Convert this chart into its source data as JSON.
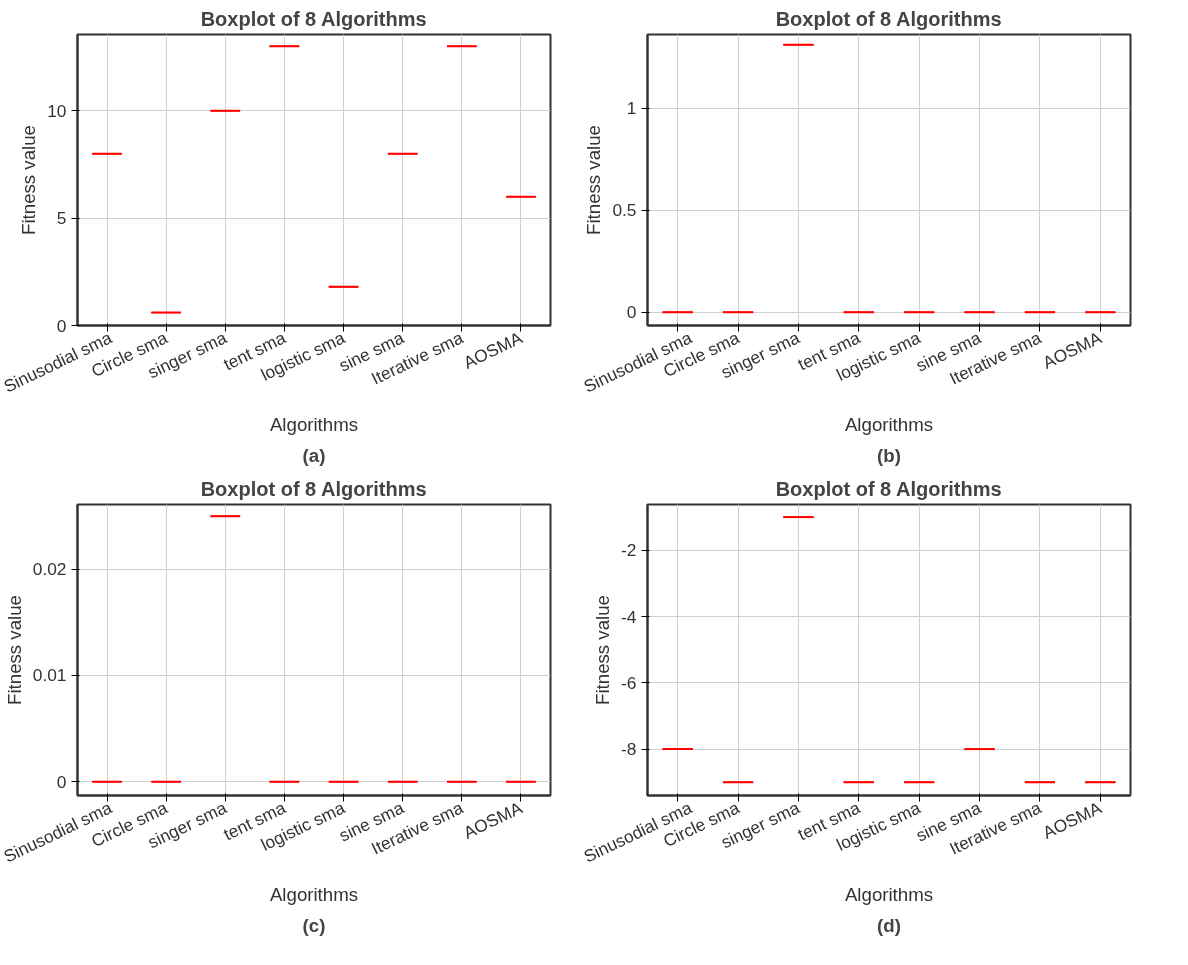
{
  "chart_data": [
    {
      "type": "box",
      "title": "Boxplot of 8 Algorithms",
      "xlabel": "Algorithms",
      "ylabel": "Fitness value",
      "annotations": [
        "(a)"
      ],
      "categories": [
        "Sinusodial sma",
        "Circle sma",
        "singer sma",
        "tent sma",
        "logistic sma",
        "sine sma",
        "Iterative sma",
        "AOSMA"
      ],
      "ylim": [
        0,
        13.55
      ],
      "yticks": [
        0,
        5,
        10
      ],
      "grid": true,
      "series": [
        {
          "color": "#ff0000",
          "boxes": [
            {
              "low": 8,
              "q1": 8,
              "median": 8,
              "q3": 8,
              "high": 8
            },
            {
              "low": 0.6,
              "q1": 0.6,
              "median": 0.6,
              "q3": 0.6,
              "high": 0.6
            },
            {
              "low": 10,
              "q1": 10,
              "median": 10,
              "q3": 10,
              "high": 10
            },
            {
              "low": 13,
              "q1": 13,
              "median": 13,
              "q3": 13,
              "high": 13
            },
            {
              "low": 1.8,
              "q1": 1.8,
              "median": 1.8,
              "q3": 1.8,
              "high": 1.8
            },
            {
              "low": 8,
              "q1": 8,
              "median": 8,
              "q3": 8,
              "high": 8
            },
            {
              "low": 13,
              "q1": 13,
              "median": 13,
              "q3": 13,
              "high": 13
            },
            {
              "low": 6,
              "q1": 6,
              "median": 6,
              "q3": 6,
              "high": 6
            }
          ]
        }
      ]
    },
    {
      "type": "box",
      "title": "Boxplot of 8 Algorithms",
      "xlabel": "Algorithms",
      "ylabel": "Fitness value",
      "annotations": [
        "(b)"
      ],
      "categories": [
        "Sinusodial sma",
        "Circle sma",
        "singer sma",
        "tent sma",
        "logistic sma",
        "sine sma",
        "Iterative sma",
        "AOSMA"
      ],
      "ylim": [
        -0.065,
        1.36
      ],
      "yticks": [
        0,
        0.5,
        1
      ],
      "grid": true,
      "series": [
        {
          "color": "#ff0000",
          "boxes": [
            {
              "low": 0,
              "q1": 0,
              "median": 0,
              "q3": 0,
              "high": 0
            },
            {
              "low": 0,
              "q1": 0,
              "median": 0,
              "q3": 0,
              "high": 0
            },
            {
              "low": 1.31,
              "q1": 1.31,
              "median": 1.31,
              "q3": 1.31,
              "high": 1.31
            },
            {
              "low": 0,
              "q1": 0,
              "median": 0,
              "q3": 0,
              "high": 0
            },
            {
              "low": 0,
              "q1": 0,
              "median": 0,
              "q3": 0,
              "high": 0
            },
            {
              "low": 0,
              "q1": 0,
              "median": 0,
              "q3": 0,
              "high": 0
            },
            {
              "low": 0,
              "q1": 0,
              "median": 0,
              "q3": 0,
              "high": 0
            },
            {
              "low": 0,
              "q1": 0,
              "median": 0,
              "q3": 0,
              "high": 0
            }
          ]
        }
      ]
    },
    {
      "type": "box",
      "title": "Boxplot of 8 Algorithms",
      "xlabel": "Algorithms",
      "ylabel": "Fitness value",
      "annotations": [
        "(c)"
      ],
      "categories": [
        "Sinusodial sma",
        "Circle sma",
        "singer sma",
        "tent sma",
        "logistic sma",
        "sine sma",
        "Iterative sma",
        "AOSMA"
      ],
      "ylim": [
        -0.0013,
        0.0261
      ],
      "yticks": [
        0,
        0.01,
        0.02
      ],
      "grid": true,
      "series": [
        {
          "color": "#ff0000",
          "boxes": [
            {
              "low": 0,
              "q1": 0,
              "median": 0,
              "q3": 0,
              "high": 0
            },
            {
              "low": 0,
              "q1": 0,
              "median": 0,
              "q3": 0,
              "high": 0
            },
            {
              "low": 0.025,
              "q1": 0.025,
              "median": 0.025,
              "q3": 0.025,
              "high": 0.025
            },
            {
              "low": 0,
              "q1": 0,
              "median": 0,
              "q3": 0,
              "high": 0
            },
            {
              "low": 0,
              "q1": 0,
              "median": 0,
              "q3": 0,
              "high": 0
            },
            {
              "low": 0,
              "q1": 0,
              "median": 0,
              "q3": 0,
              "high": 0
            },
            {
              "low": 0,
              "q1": 0,
              "median": 0,
              "q3": 0,
              "high": 0
            },
            {
              "low": 0,
              "q1": 0,
              "median": 0,
              "q3": 0,
              "high": 0
            }
          ]
        }
      ]
    },
    {
      "type": "box",
      "title": "Boxplot of 8 Algorithms",
      "xlabel": "Algorithms",
      "ylabel": "Fitness value",
      "annotations": [
        "(d)"
      ],
      "categories": [
        "Sinusodial sma",
        "Circle sma",
        "singer sma",
        "tent sma",
        "logistic sma",
        "sine sma",
        "Iterative sma",
        "AOSMA"
      ],
      "ylim": [
        -9.4,
        -0.62
      ],
      "yticks": [
        -8,
        -6,
        -4,
        -2
      ],
      "grid": true,
      "series": [
        {
          "color": "#ff0000",
          "boxes": [
            {
              "low": -8,
              "q1": -8,
              "median": -8,
              "q3": -8,
              "high": -8
            },
            {
              "low": -9,
              "q1": -9,
              "median": -9,
              "q3": -9,
              "high": -9
            },
            {
              "low": -1,
              "q1": -1,
              "median": -1,
              "q3": -1,
              "high": -1
            },
            {
              "low": -9,
              "q1": -9,
              "median": -9,
              "q3": -9,
              "high": -9
            },
            {
              "low": -9,
              "q1": -9,
              "median": -9,
              "q3": -9,
              "high": -9
            },
            {
              "low": -8,
              "q1": -8,
              "median": -8,
              "q3": -8,
              "high": -8
            },
            {
              "low": -9,
              "q1": -9,
              "median": -9,
              "q3": -9,
              "high": -9
            },
            {
              "low": -9,
              "q1": -9,
              "median": -9,
              "q3": -9,
              "high": -9
            }
          ]
        }
      ]
    }
  ]
}
